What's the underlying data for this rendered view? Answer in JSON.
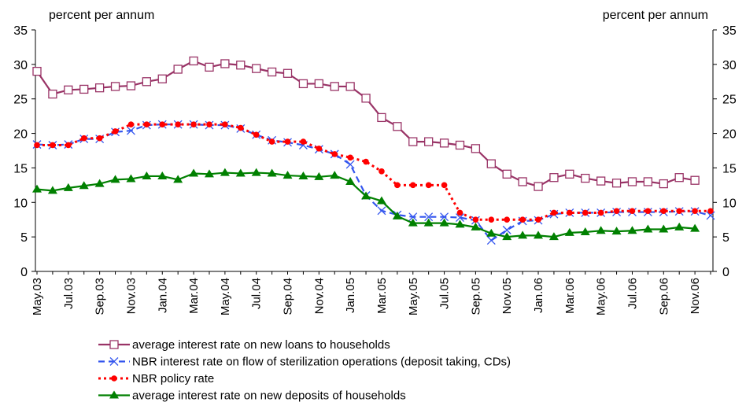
{
  "chart_data": {
    "type": "line",
    "ylabel": "percent per annum",
    "y2label": "percent per annum",
    "categories": [
      "May.03",
      null,
      "Jul.03",
      null,
      "Sep.03",
      null,
      "Nov.03",
      null,
      "Jan.04",
      null,
      "Mar.04",
      null,
      "May.04",
      null,
      "Jul.04",
      null,
      "Sep.04",
      null,
      "Nov.04",
      null,
      "Jan.05",
      null,
      "Mar.05",
      null,
      "May.05",
      null,
      "Jul.05",
      null,
      "Sep.05",
      null,
      "Nov.05",
      null,
      "Jan.06",
      null,
      "Mar.06",
      null,
      "May.06",
      null,
      "Jul.06",
      null,
      "Sep.06",
      null,
      "Nov.06",
      null
    ],
    "ylim": [
      0,
      35
    ],
    "yticks": [
      0,
      5,
      10,
      15,
      20,
      25,
      30,
      35
    ],
    "y2lim": [
      0,
      35
    ],
    "y2ticks": [
      0,
      5,
      10,
      15,
      20,
      25,
      30,
      35
    ],
    "grid": false,
    "series": [
      {
        "name": "average interest rate on new loans to households",
        "color": "#993366",
        "marker": "square",
        "dash": "solid",
        "values": [
          29,
          25.7,
          26.3,
          26.4,
          26.6,
          26.8,
          26.9,
          27.5,
          27.9,
          29.3,
          30.5,
          29.6,
          30.1,
          29.9,
          29.4,
          28.9,
          28.7,
          27.2,
          27.2,
          26.8,
          26.8,
          25.1,
          22.3,
          21,
          18.8,
          18.8,
          18.6,
          18.3,
          17.8,
          15.6,
          14.1,
          13,
          12.3,
          13.6,
          14.1,
          13.5,
          13.1,
          12.8,
          13,
          13,
          12.7,
          13.6,
          13.2,
          null
        ]
      },
      {
        "name": "NBR interest rate on flow of sterilization operations (deposit taking, CDs)",
        "color": "#3355ee",
        "marker": "x",
        "dash": "dashed",
        "values": [
          18.4,
          18.3,
          18.4,
          19.2,
          19.2,
          20.2,
          20.4,
          21.2,
          21.3,
          21.3,
          21.3,
          21.2,
          21.2,
          20.7,
          19.8,
          19,
          18.7,
          18.3,
          17.7,
          17,
          15.5,
          11,
          8.8,
          8.2,
          7.9,
          7.9,
          7.9,
          7.8,
          7.4,
          4.5,
          6,
          7.3,
          7.4,
          8.3,
          8.5,
          8.5,
          8.5,
          8.6,
          8.6,
          8.6,
          8.6,
          8.7,
          8.7,
          8.1
        ]
      },
      {
        "name": "NBR policy rate",
        "color": "#ff0000",
        "marker": "circle",
        "dash": "dotted",
        "values": [
          18.3,
          18.3,
          18.3,
          19.3,
          19.3,
          20.3,
          21.3,
          21.3,
          21.3,
          21.3,
          21.3,
          21.3,
          21.3,
          20.8,
          19.8,
          18.8,
          18.8,
          18.8,
          17.8,
          17,
          16.5,
          15.9,
          14.5,
          12.5,
          12.5,
          12.5,
          12.5,
          8.5,
          7.5,
          7.5,
          7.5,
          7.5,
          7.5,
          8.5,
          8.5,
          8.5,
          8.5,
          8.75,
          8.75,
          8.75,
          8.75,
          8.75,
          8.75,
          8.75
        ]
      },
      {
        "name": "average interest rate on new deposits of households",
        "color": "#008000",
        "marker": "triangle",
        "dash": "solid",
        "values": [
          11.9,
          11.7,
          12.1,
          12.4,
          12.7,
          13.3,
          13.4,
          13.8,
          13.8,
          13.3,
          14.2,
          14.1,
          14.3,
          14.2,
          14.3,
          14.2,
          13.9,
          13.8,
          13.7,
          13.9,
          13,
          10.9,
          10.2,
          8,
          7,
          7,
          7,
          6.8,
          6.4,
          5.5,
          5,
          5.2,
          5.2,
          5,
          5.6,
          5.7,
          5.9,
          5.8,
          5.9,
          6.1,
          6.1,
          6.4,
          6.2,
          null
        ]
      }
    ]
  }
}
